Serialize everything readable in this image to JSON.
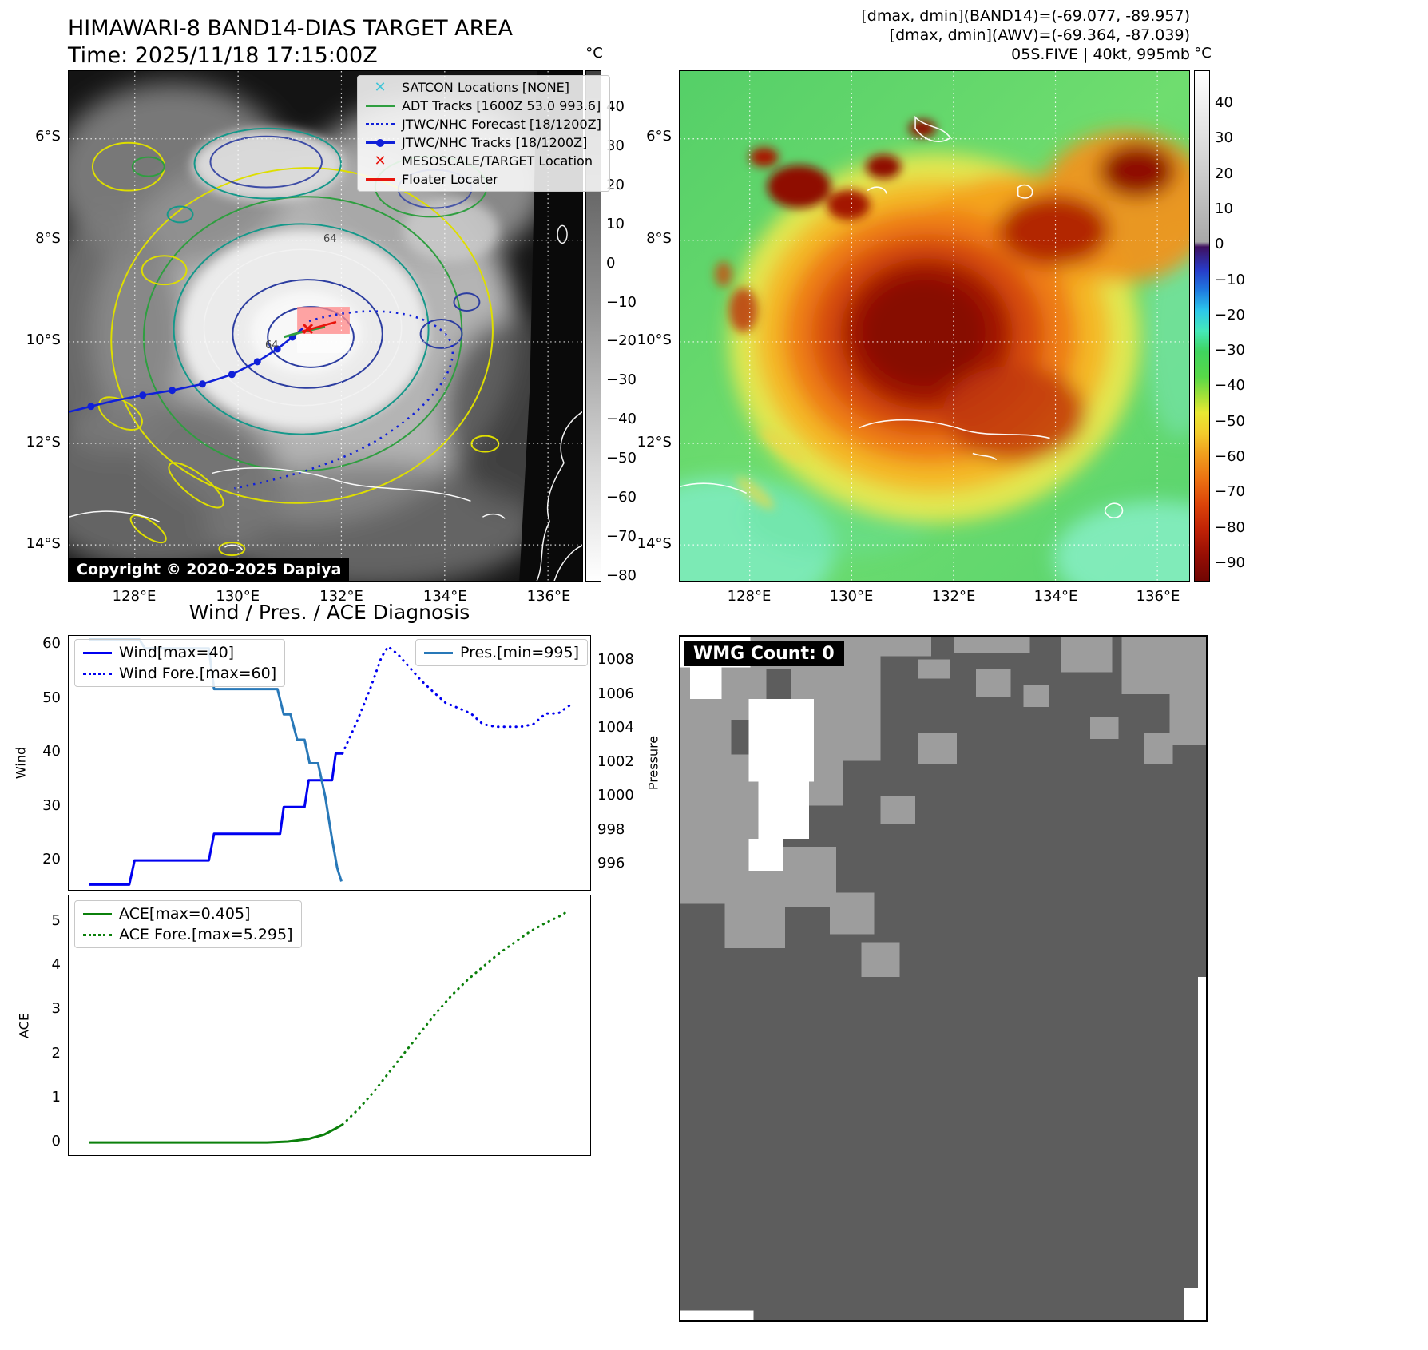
{
  "header_right": {
    "line1": "[dmax, dmin](BAND14)=(-69.077, -89.957)",
    "line2": "[dmax, dmin](AWV)=(-69.364, -87.039)",
    "line3": "05S.FIVE | 40kt, 995mb"
  },
  "band14": {
    "title": "HIMAWARI-8 BAND14-DIAS TARGET AREA",
    "time_line": "Time: 2025/11/18 17:15:00Z",
    "copyright": "Copyright © 2020-2025 Dapiya",
    "contour_labels": [
      "64",
      "64"
    ],
    "legend": [
      {
        "label": "SATCON Locations [NONE]",
        "marker": "x",
        "color": "#3fc5d8"
      },
      {
        "label": "ADT Tracks [1600Z 53.0 993.6]",
        "marker": "line",
        "color": "#2f9e40"
      },
      {
        "label": "JTWC/NHC Forecast [18/1200Z]",
        "marker": "dotted",
        "color": "#1020d8"
      },
      {
        "label": "JTWC/NHC Tracks [18/1200Z]",
        "marker": "line-dot",
        "color": "#1020d8"
      },
      {
        "label": "MESOSCALE/TARGET Location",
        "marker": "x",
        "color": "#e8150d"
      },
      {
        "label": "Floater Locater",
        "marker": "line",
        "color": "#e8150d"
      }
    ],
    "xticks": [
      "128°E",
      "130°E",
      "132°E",
      "134°E",
      "136°E"
    ],
    "yticks": [
      "6°S",
      "8°S",
      "10°S",
      "12°S",
      "14°S"
    ],
    "colorbar_unit": "°C",
    "colorbar_ticks": [
      "40",
      "30",
      "20",
      "10",
      "0",
      "−10",
      "−20",
      "−30",
      "−40",
      "−50",
      "−60",
      "−70",
      "−80"
    ]
  },
  "awv": {
    "xticks": [
      "128°E",
      "130°E",
      "132°E",
      "134°E",
      "136°E"
    ],
    "yticks": [
      "6°S",
      "8°S",
      "10°S",
      "12°S",
      "14°S"
    ],
    "colorbar_unit": "°C",
    "colorbar_ticks": [
      "40",
      "30",
      "20",
      "10",
      "0",
      "−10",
      "−20",
      "−30",
      "−40",
      "−50",
      "−60",
      "−70",
      "−80",
      "−90"
    ]
  },
  "wmg": {
    "label": "WMG Count: 0"
  },
  "chart_data": [
    {
      "type": "line",
      "panel": "wind_pressure",
      "title": "Wind / Pres. / ACE Diagnosis",
      "ylabel_left": "Wind",
      "ylabel_right": "Pressure",
      "xlim": [
        0,
        1
      ],
      "ylim_left": [
        14.5,
        62
      ],
      "yticks_left": [
        20,
        30,
        40,
        50,
        60
      ],
      "ylim_right": [
        994.5,
        1009.55
      ],
      "yticks_right": [
        996,
        998,
        1000,
        1002,
        1004,
        1006,
        1008
      ],
      "legend_note": "Wind max observed 40 kt, forecast max 60 kt, pressure min 995 mb",
      "series": [
        {
          "name": "Wind[max=40]",
          "axis": "left",
          "style": "solid",
          "color": "#0000f0",
          "x": [
            0.038,
            0.115,
            0.125,
            0.268,
            0.278,
            0.405,
            0.412,
            0.452,
            0.46,
            0.505,
            0.512,
            0.525
          ],
          "y": [
            15.5,
            15.5,
            20,
            20,
            25,
            25,
            30,
            30,
            35,
            35,
            40,
            40
          ]
        },
        {
          "name": "Wind Fore.[max=60]",
          "axis": "left",
          "style": "dotted",
          "color": "#0000f0",
          "x": [
            0.525,
            0.553,
            0.578,
            0.6,
            0.613,
            0.632,
            0.655,
            0.678,
            0.7,
            0.723,
            0.748,
            0.772,
            0.795,
            0.82,
            0.845,
            0.868,
            0.892,
            0.916,
            0.94,
            0.962
          ],
          "y": [
            40,
            46,
            52,
            58,
            60,
            58.5,
            56,
            53.5,
            51.5,
            49.5,
            48.5,
            47.5,
            45.5,
            45,
            45,
            45,
            45.5,
            47.5,
            47.5,
            49
          ]
        },
        {
          "name": "Pres.[min=995]",
          "axis": "right",
          "style": "solid",
          "color": "#2878b8",
          "x": [
            0.038,
            0.135,
            0.145,
            0.268,
            0.278,
            0.4,
            0.412,
            0.425,
            0.438,
            0.452,
            0.462,
            0.478,
            0.492,
            0.505,
            0.515,
            0.523
          ],
          "y": [
            1009.3,
            1009.3,
            1008.8,
            1008.8,
            1006.4,
            1006.4,
            1004.9,
            1004.9,
            1003.4,
            1003.4,
            1002.0,
            1002.0,
            1000.0,
            997.5,
            995.8,
            995.0
          ]
        }
      ]
    },
    {
      "type": "line",
      "panel": "ace",
      "ylabel_left": "ACE",
      "xlim": [
        0,
        1
      ],
      "ylim_left": [
        -0.29,
        5.63
      ],
      "yticks_left": [
        0,
        1,
        2,
        3,
        4,
        5
      ],
      "legend_note": "ACE observed max 0.405, forecast max 5.295",
      "series": [
        {
          "name": "ACE[max=0.405]",
          "axis": "left",
          "style": "solid",
          "color": "#0b800b",
          "x": [
            0.038,
            0.38,
            0.42,
            0.46,
            0.49,
            0.512,
            0.525
          ],
          "y": [
            0,
            0,
            0.02,
            0.08,
            0.18,
            0.32,
            0.405
          ]
        },
        {
          "name": "ACE Fore.[max=5.295]",
          "axis": "left",
          "style": "dotted",
          "color": "#0b800b",
          "x": [
            0.525,
            0.555,
            0.585,
            0.615,
            0.645,
            0.675,
            0.705,
            0.735,
            0.765,
            0.795,
            0.825,
            0.855,
            0.885,
            0.915,
            0.945,
            0.958
          ],
          "y": [
            0.405,
            0.75,
            1.15,
            1.6,
            2.05,
            2.5,
            2.95,
            3.35,
            3.7,
            4.0,
            4.3,
            4.55,
            4.8,
            5.0,
            5.17,
            5.27
          ]
        }
      ]
    }
  ]
}
